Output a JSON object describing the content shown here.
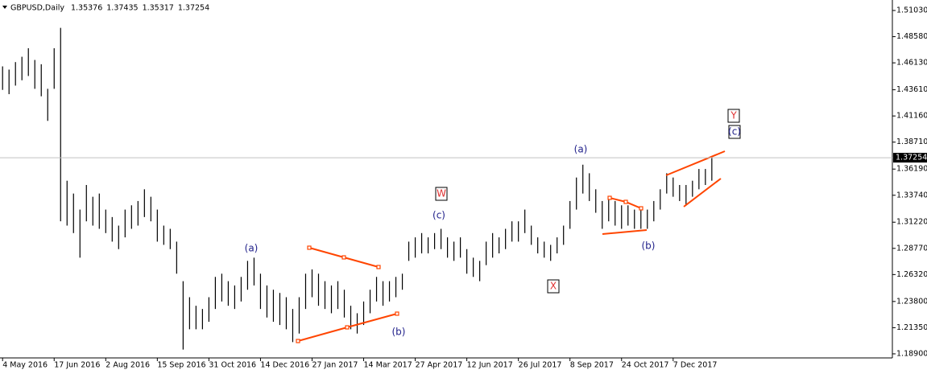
{
  "chart_data": {
    "type": "ohlc",
    "title": "GBPUSD,Daily",
    "header_values": [
      1.35376,
      1.37435,
      1.35317,
      1.37254
    ],
    "color": "#000000",
    "high": [
      1.458,
      1.455,
      1.462,
      1.467,
      1.475,
      1.464,
      1.46,
      1.437,
      1.475,
      1.494,
      1.351,
      1.339,
      1.324,
      1.347,
      1.336,
      1.339,
      1.324,
      1.317,
      1.309,
      1.324,
      1.328,
      1.332,
      1.343,
      1.336,
      1.324,
      1.309,
      1.306,
      1.294,
      1.257,
      1.242,
      1.234,
      1.231,
      1.242,
      1.261,
      1.264,
      1.257,
      1.253,
      1.261,
      1.276,
      1.279,
      1.264,
      1.253,
      1.249,
      1.246,
      1.242,
      1.231,
      1.242,
      1.264,
      1.268,
      1.264,
      1.257,
      1.253,
      1.257,
      1.249,
      1.234,
      1.227,
      1.238,
      1.249,
      1.261,
      1.257,
      1.257,
      1.261,
      1.264,
      1.294,
      1.298,
      1.302,
      1.298,
      1.302,
      1.306,
      1.298,
      1.294,
      1.298,
      1.287,
      1.279,
      1.276,
      1.294,
      1.302,
      1.298,
      1.306,
      1.313,
      1.313,
      1.324,
      1.309,
      1.298,
      1.294,
      1.291,
      1.298,
      1.309,
      1.332,
      1.354,
      1.366,
      1.358,
      1.343,
      1.332,
      1.336,
      1.332,
      1.328,
      1.328,
      1.324,
      1.324,
      1.324,
      1.332,
      1.343,
      1.358,
      1.354,
      1.347,
      1.347,
      1.351,
      1.362,
      1.362,
      1.373
    ],
    "low": [
      1.436,
      1.432,
      1.44,
      1.445,
      1.449,
      1.437,
      1.43,
      1.407,
      1.437,
      1.313,
      1.309,
      1.302,
      1.279,
      1.313,
      1.309,
      1.306,
      1.302,
      1.294,
      1.287,
      1.298,
      1.306,
      1.309,
      1.317,
      1.313,
      1.294,
      1.291,
      1.287,
      1.264,
      1.193,
      1.212,
      1.212,
      1.212,
      1.219,
      1.231,
      1.238,
      1.234,
      1.231,
      1.238,
      1.249,
      1.253,
      1.231,
      1.223,
      1.219,
      1.216,
      1.212,
      1.2,
      1.208,
      1.231,
      1.242,
      1.234,
      1.231,
      1.227,
      1.231,
      1.223,
      1.212,
      1.208,
      1.216,
      1.227,
      1.238,
      1.234,
      1.238,
      1.242,
      1.249,
      1.276,
      1.279,
      1.283,
      1.283,
      1.287,
      1.287,
      1.279,
      1.276,
      1.279,
      1.264,
      1.261,
      1.257,
      1.272,
      1.279,
      1.283,
      1.287,
      1.294,
      1.294,
      1.302,
      1.291,
      1.283,
      1.279,
      1.276,
      1.283,
      1.291,
      1.306,
      1.324,
      1.339,
      1.332,
      1.321,
      1.306,
      1.313,
      1.309,
      1.306,
      1.309,
      1.306,
      1.306,
      1.306,
      1.313,
      1.324,
      1.339,
      1.336,
      1.332,
      1.328,
      1.336,
      1.343,
      1.347,
      1.351
    ],
    "xlim": [
      -0.4,
      138
    ],
    "ylim": [
      1.1852,
      1.5201
    ],
    "xticks": [
      {
        "value": 0,
        "label": "4 May 2016"
      },
      {
        "value": 8,
        "label": "17 Jun 2016"
      },
      {
        "value": 16,
        "label": "2 Aug 2016"
      },
      {
        "value": 24,
        "label": "15 Sep 2016"
      },
      {
        "value": 32,
        "label": "31 Oct 2016"
      },
      {
        "value": 40,
        "label": "14 Dec 2016"
      },
      {
        "value": 48,
        "label": "27 Jan 2017"
      },
      {
        "value": 56,
        "label": "14 Mar 2017"
      },
      {
        "value": 64,
        "label": "27 Apr 2017"
      },
      {
        "value": 72,
        "label": "12 Jun 2017"
      },
      {
        "value": 80,
        "label": "26 Jul 2017"
      },
      {
        "value": 88,
        "label": "8 Sep 2017"
      },
      {
        "value": 96,
        "label": "24 Oct 2017"
      },
      {
        "value": 104,
        "label": "7 Dec 2017"
      }
    ],
    "yticks": [
      {
        "value": 1.5103,
        "label": "1.51030"
      },
      {
        "value": 1.4858,
        "label": "1.48580"
      },
      {
        "value": 1.4613,
        "label": "1.46130"
      },
      {
        "value": 1.4361,
        "label": "1.43610"
      },
      {
        "value": 1.4116,
        "label": "1.41160"
      },
      {
        "value": 1.3871,
        "label": "1.38710"
      },
      {
        "value": 1.3619,
        "label": "1.36190"
      },
      {
        "value": 1.3374,
        "label": "1.33740"
      },
      {
        "value": 1.3122,
        "label": "1.31220"
      },
      {
        "value": 1.2877,
        "label": "1.28770"
      },
      {
        "value": 1.2632,
        "label": "1.26320"
      },
      {
        "value": 1.238,
        "label": "1.23800"
      },
      {
        "value": 1.2135,
        "label": "1.21350"
      },
      {
        "value": 1.189,
        "label": "1.18900"
      }
    ],
    "annotations": [
      "(a)",
      "(b)",
      "(c)",
      "W",
      "X",
      "(a)",
      "(b)",
      "Y",
      "(c)"
    ]
  }
}
